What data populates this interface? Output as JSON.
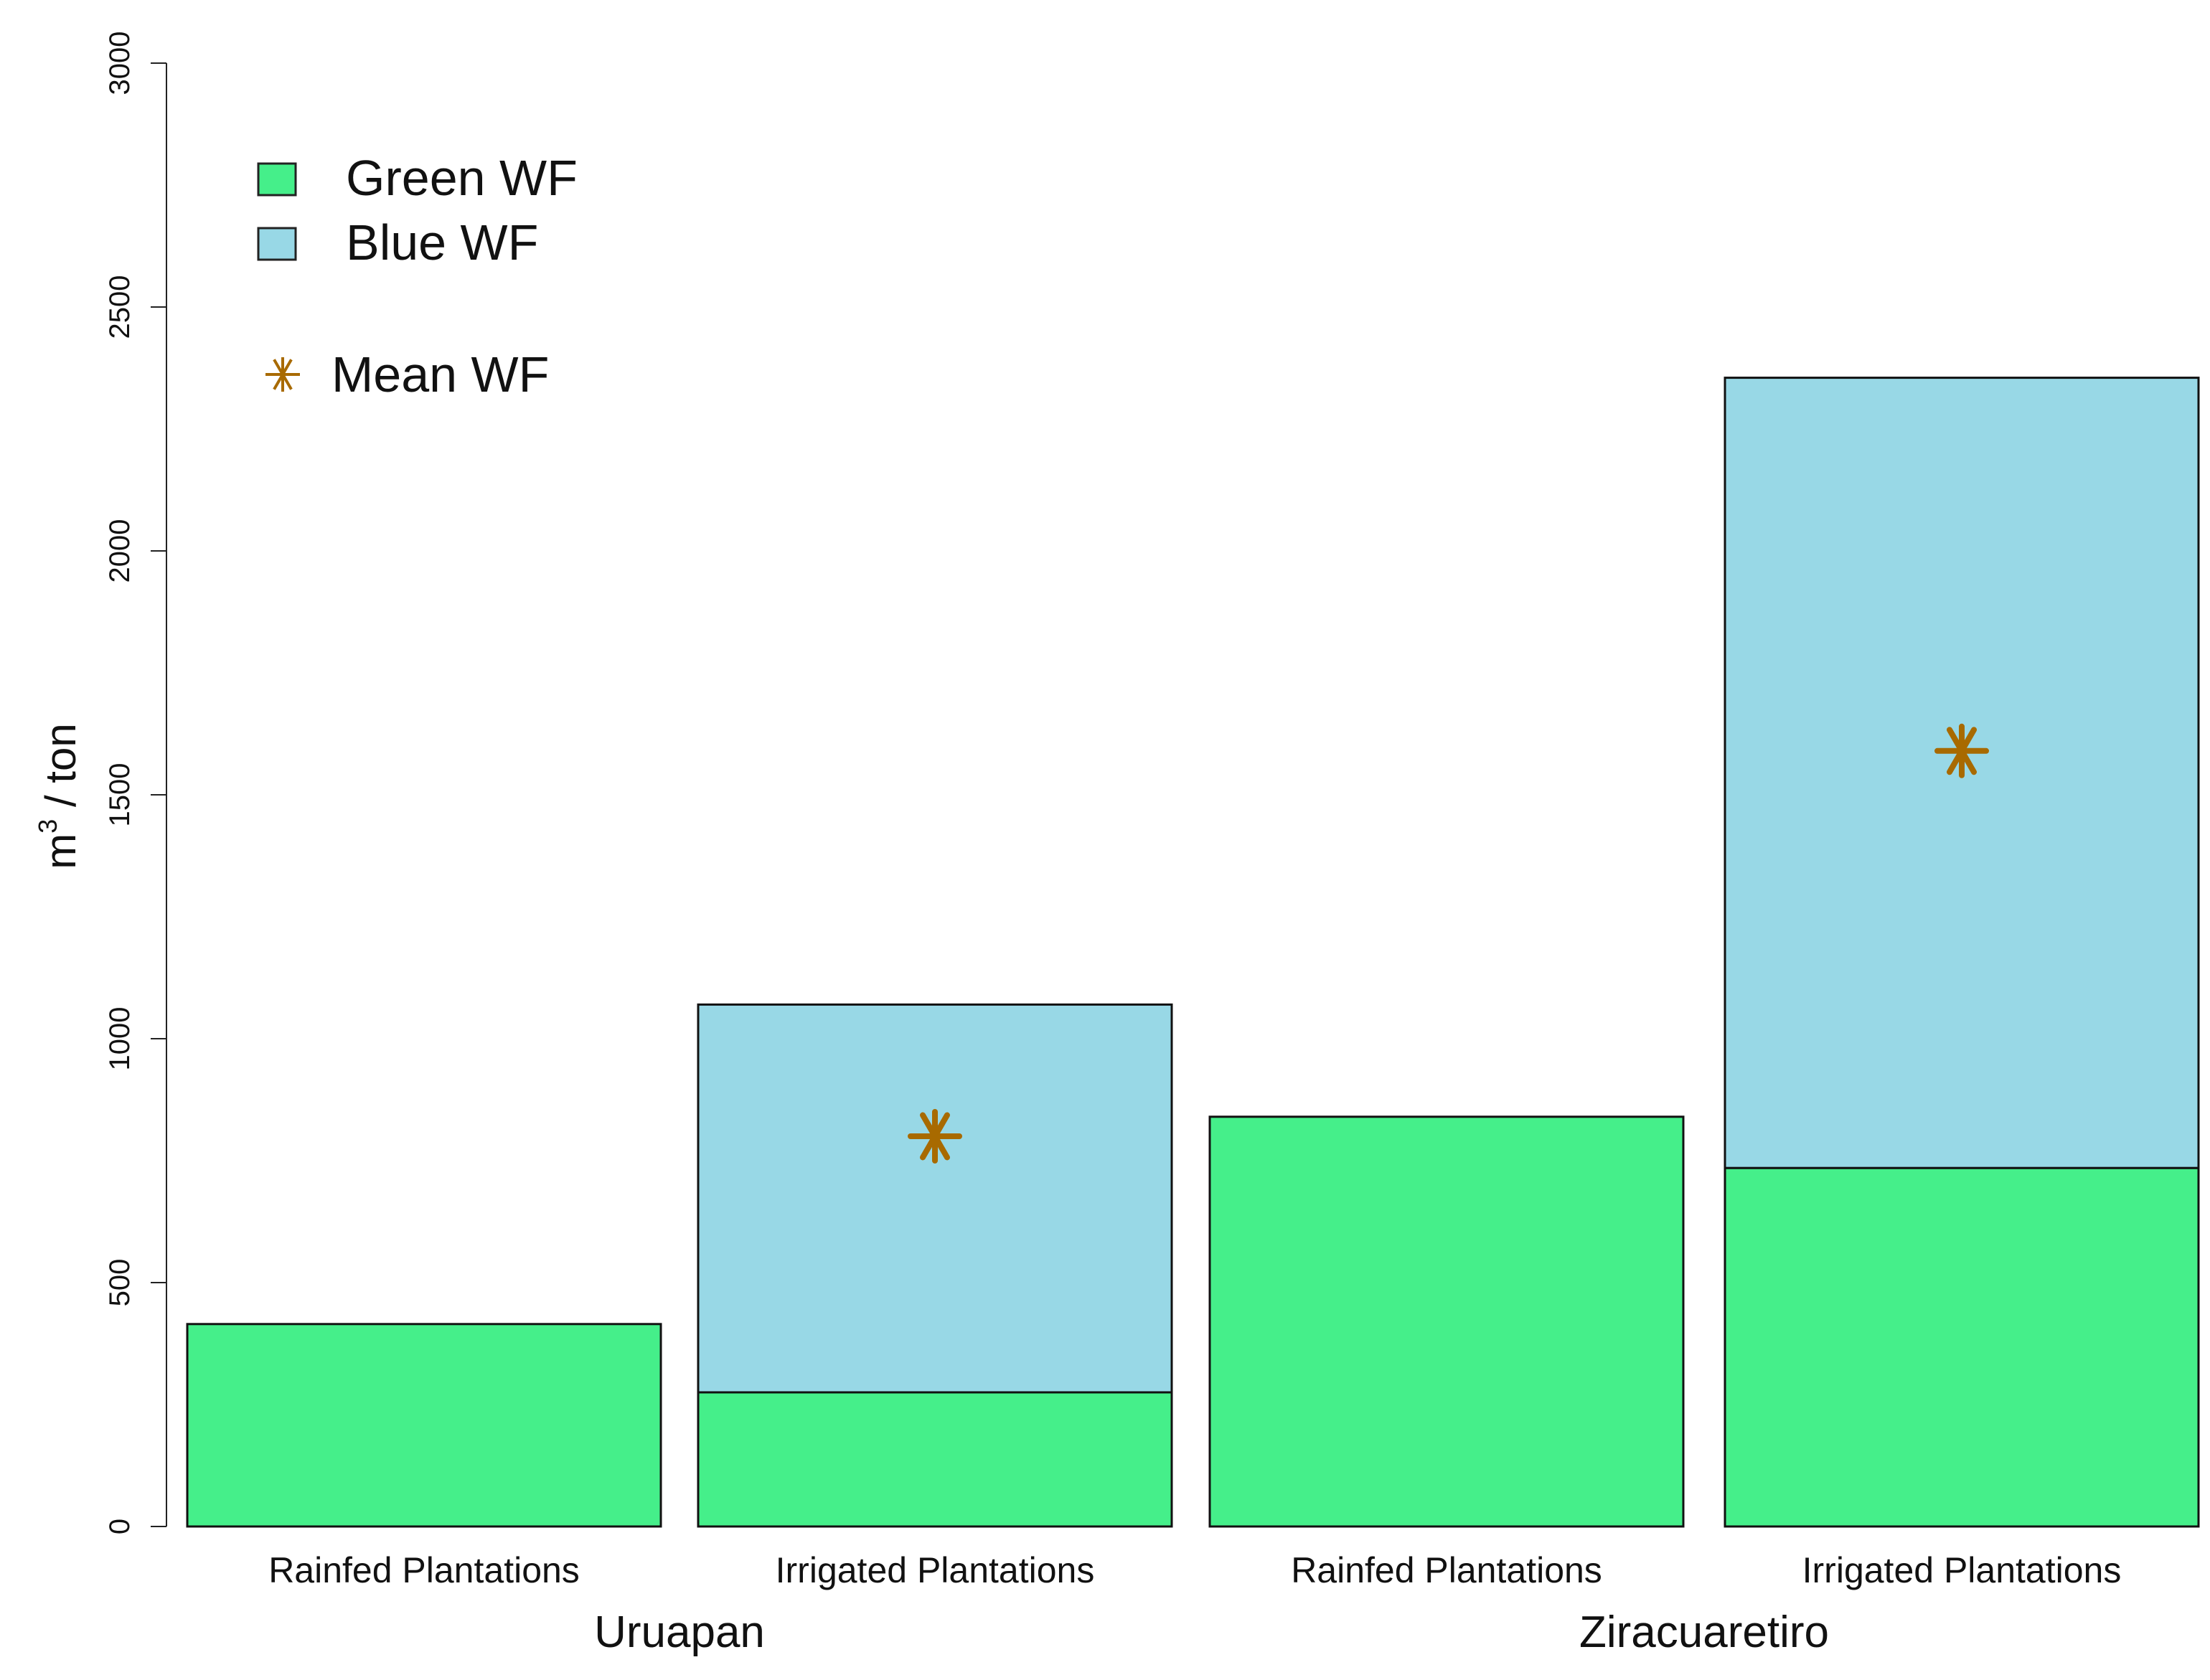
{
  "chart_data": {
    "type": "bar",
    "stacked": true,
    "ylabel_base": "m",
    "ylabel_sup": "3",
    "ylabel_rest": " / ton",
    "ylim": [
      0,
      3000
    ],
    "yticks": [
      0,
      500,
      1000,
      1500,
      2000,
      2500,
      3000
    ],
    "categories": [
      "Rainfed Plantations",
      "Irrigated Plantations",
      "Rainfed Plantations",
      "Irrigated Plantations"
    ],
    "groups": [
      {
        "label": "Uruapan",
        "categories": [
          0,
          1
        ]
      },
      {
        "label": "Ziracuaretiro",
        "categories": [
          2,
          3
        ]
      }
    ],
    "series": [
      {
        "name": "Green WF",
        "color": "#45ef8a",
        "values": [
          415,
          275,
          840,
          735
        ]
      },
      {
        "name": "Blue WF",
        "color": "#98d8e6",
        "values": [
          0,
          795,
          0,
          1620
        ]
      }
    ],
    "mean": {
      "name": "Mean WF",
      "color": "#a86a00",
      "values": [
        null,
        800,
        null,
        1590
      ]
    },
    "legend_position": "top-left",
    "grid": false
  }
}
